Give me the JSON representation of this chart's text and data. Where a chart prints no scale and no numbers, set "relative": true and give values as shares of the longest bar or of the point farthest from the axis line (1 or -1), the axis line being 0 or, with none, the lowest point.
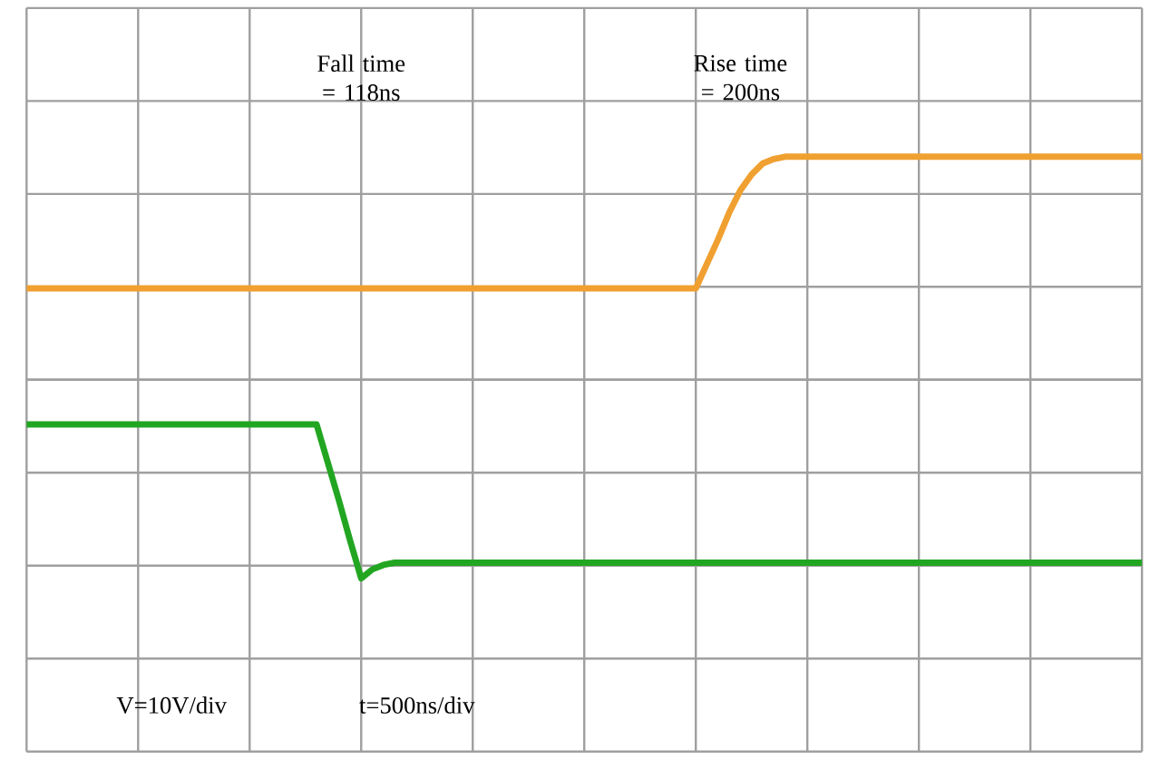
{
  "chart_data": {
    "type": "line",
    "relative": true,
    "grid": true,
    "categories": [
      null,
      null,
      null,
      null,
      null,
      null,
      null,
      null,
      null,
      null,
      null,
      null,
      null,
      null,
      null,
      null,
      null,
      null,
      null,
      null,
      null,
      null,
      null,
      null,
      null,
      null,
      null,
      null,
      null,
      null,
      null,
      null,
      null,
      null,
      null,
      null,
      null,
      null,
      null,
      null,
      null,
      null,
      null,
      null,
      null,
      null,
      null,
      null,
      null,
      null,
      null,
      null,
      null,
      null,
      null,
      null,
      null,
      null,
      null,
      null,
      null,
      null,
      null,
      null,
      null,
      null,
      null,
      null,
      null,
      null,
      null,
      null,
      null,
      null,
      null,
      null,
      null,
      null,
      null,
      null,
      null,
      null,
      null,
      null,
      null,
      null,
      null,
      null,
      null,
      null,
      null,
      null,
      null,
      null,
      null,
      null,
      null,
      null,
      null,
      null,
      null
    ],
    "series": [
      {
        "color": "#f0a030",
        "values": [
          0.41,
          0.41,
          0.41,
          0.41,
          0.41,
          0.41,
          0.41,
          0.41,
          0.41,
          0.41,
          0.41,
          0.41,
          0.41,
          0.41,
          0.41,
          0.41,
          0.41,
          0.41,
          0.41,
          0.41,
          0.41,
          0.41,
          0.41,
          0.41,
          0.41,
          0.41,
          0.41,
          0.41,
          0.41,
          0.41,
          0.41,
          0.41,
          0.41,
          0.41,
          0.41,
          0.41,
          0.41,
          0.41,
          0.41,
          0.41,
          0.41,
          0.41,
          0.41,
          0.41,
          0.41,
          0.41,
          0.41,
          0.41,
          0.41,
          0.41,
          0.41,
          0.41,
          0.41,
          0.41,
          0.41,
          0.41,
          0.41,
          0.41,
          0.41,
          0.41,
          0.41,
          0.52,
          0.63,
          0.75,
          0.85,
          0.92,
          0.97,
          0.99,
          1.0,
          1.0,
          1.0,
          1.0,
          1.0,
          1.0,
          1.0,
          1.0,
          1.0,
          1.0,
          1.0,
          1.0,
          1.0,
          1.0,
          1.0,
          1.0,
          1.0,
          1.0,
          1.0,
          1.0,
          1.0,
          1.0,
          1.0,
          1.0,
          1.0,
          1.0,
          1.0,
          1.0,
          1.0,
          1.0,
          1.0,
          1.0,
          1.0
        ]
      },
      {
        "color": "#22a622",
        "values": [
          -0.2,
          -0.2,
          -0.2,
          -0.2,
          -0.2,
          -0.2,
          -0.2,
          -0.2,
          -0.2,
          -0.2,
          -0.2,
          -0.2,
          -0.2,
          -0.2,
          -0.2,
          -0.2,
          -0.2,
          -0.2,
          -0.2,
          -0.2,
          -0.2,
          -0.2,
          -0.2,
          -0.2,
          -0.2,
          -0.2,
          -0.2,
          -0.37,
          -0.54,
          -0.72,
          -0.89,
          -0.85,
          -0.83,
          -0.82,
          -0.82,
          -0.82,
          -0.82,
          -0.82,
          -0.82,
          -0.82,
          -0.82,
          -0.82,
          -0.82,
          -0.82,
          -0.82,
          -0.82,
          -0.82,
          -0.82,
          -0.82,
          -0.82,
          -0.82,
          -0.82,
          -0.82,
          -0.82,
          -0.82,
          -0.82,
          -0.82,
          -0.82,
          -0.82,
          -0.82,
          -0.82,
          -0.82,
          -0.82,
          -0.82,
          -0.82,
          -0.82,
          -0.82,
          -0.82,
          -0.82,
          -0.82,
          -0.82,
          -0.82,
          -0.82,
          -0.82,
          -0.82,
          -0.82,
          -0.82,
          -0.82,
          -0.82,
          -0.82,
          -0.82,
          -0.82,
          -0.82,
          -0.82,
          -0.82,
          -0.82,
          -0.82,
          -0.82,
          -0.82,
          -0.82,
          -0.82,
          -0.82,
          -0.82,
          -0.82,
          -0.82,
          -0.82,
          -0.82,
          -0.82,
          -0.82,
          -0.82,
          -0.82
        ]
      }
    ],
    "annotations": [
      "Fall time = 118ns",
      "Rise time = 200ns",
      "V=10V/div",
      "t=500ns/div"
    ]
  }
}
